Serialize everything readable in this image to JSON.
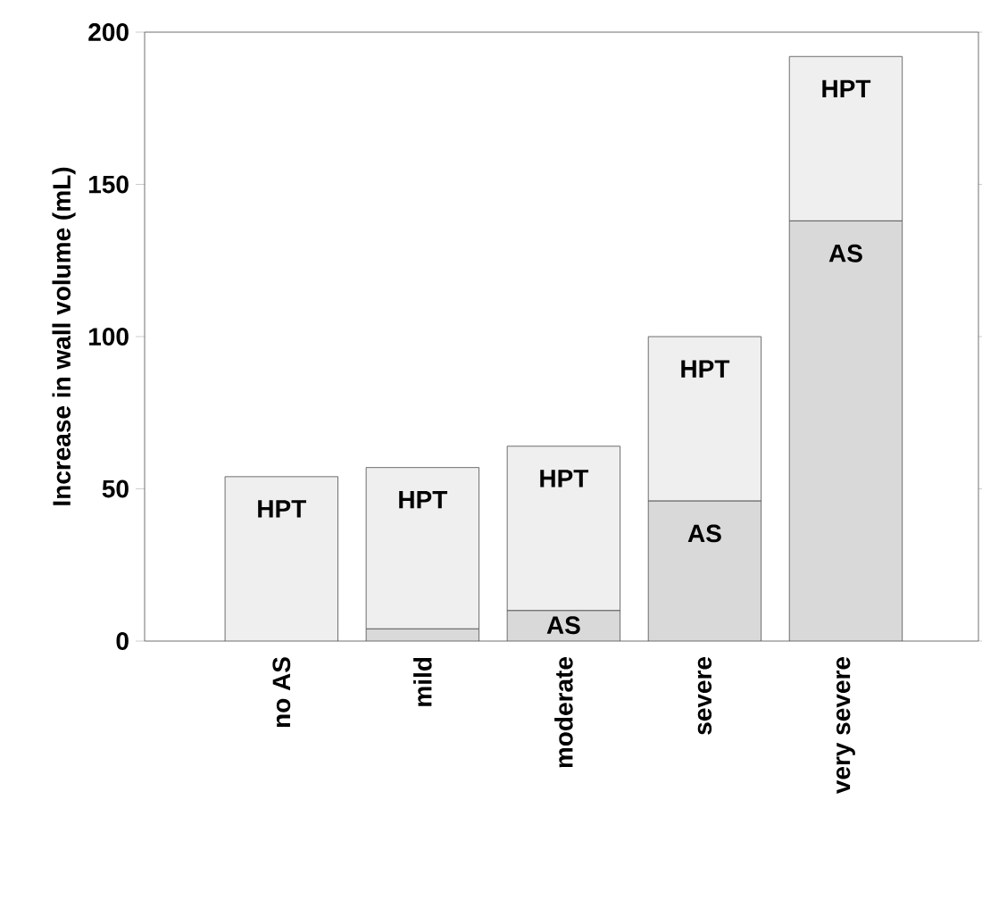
{
  "chart_data": {
    "type": "bar",
    "stacked": true,
    "ylabel": "Increase in wall volume (mL)",
    "categories": [
      "no AS",
      "mild",
      "moderate",
      "severe",
      "very severe"
    ],
    "series": [
      {
        "name": "AS",
        "color": "#d9d9d9",
        "values": [
          null,
          4,
          10,
          46,
          138
        ]
      },
      {
        "name": "HPT",
        "color": "#efefef",
        "values": [
          54,
          53,
          54,
          54,
          54
        ]
      }
    ],
    "ylim": [
      0,
      200
    ],
    "yticks": [
      0,
      50,
      100,
      150,
      200
    ],
    "grid": false,
    "legend": false
  }
}
